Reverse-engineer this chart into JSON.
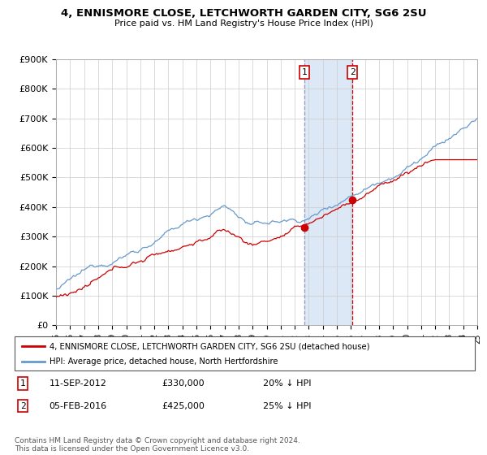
{
  "title": "4, ENNISMORE CLOSE, LETCHWORTH GARDEN CITY, SG6 2SU",
  "subtitle": "Price paid vs. HM Land Registry's House Price Index (HPI)",
  "red_line_label": "4, ENNISMORE CLOSE, LETCHWORTH GARDEN CITY, SG6 2SU (detached house)",
  "blue_line_label": "HPI: Average price, detached house, North Hertfordshire",
  "transaction1_date": "11-SEP-2012",
  "transaction1_price": "£330,000",
  "transaction1_hpi": "20% ↓ HPI",
  "transaction2_date": "05-FEB-2016",
  "transaction2_price": "£425,000",
  "transaction2_hpi": "25% ↓ HPI",
  "footer": "Contains HM Land Registry data © Crown copyright and database right 2024.\nThis data is licensed under the Open Government Licence v3.0.",
  "ylim": [
    0,
    900000
  ],
  "yticks": [
    0,
    100000,
    200000,
    300000,
    400000,
    500000,
    600000,
    700000,
    800000,
    900000
  ],
  "ytick_labels": [
    "£0",
    "£100K",
    "£200K",
    "£300K",
    "£400K",
    "£500K",
    "£600K",
    "£700K",
    "£800K",
    "£900K"
  ],
  "hpi_color": "#6699cc",
  "price_color": "#cc0000",
  "shade_color": "#dce8f5",
  "transaction1_x": 2012.7,
  "transaction2_x": 2016.1,
  "background_color": "#ffffff",
  "grid_color": "#cccccc"
}
